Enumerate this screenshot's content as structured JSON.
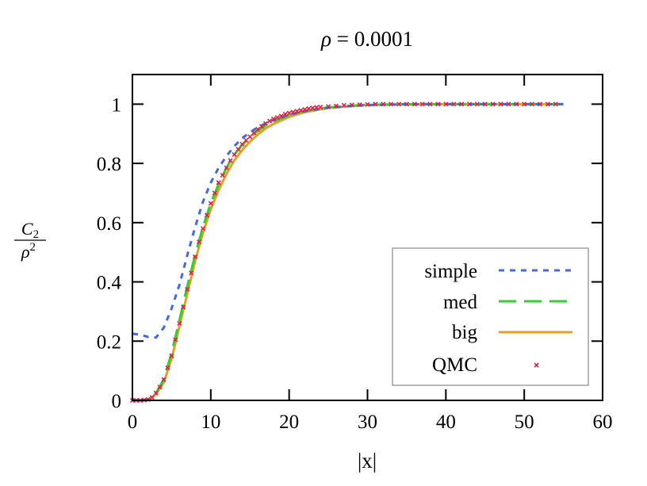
{
  "chart_data": {
    "type": "line",
    "title": "ρ = 0.0001",
    "title_parts": {
      "symbol": "ρ",
      "rest": " = 0.0001"
    },
    "xlabel": "|x|",
    "ylabel": {
      "numerator": "C",
      "numerator_sub": "2",
      "denominator": "ρ",
      "denominator_sup": "2"
    },
    "xlim": [
      0,
      60
    ],
    "ylim": [
      0,
      1.1
    ],
    "xticks": [
      0,
      10,
      20,
      30,
      40,
      50,
      60
    ],
    "yticks": [
      0,
      0.2,
      0.4,
      0.6,
      0.8,
      1
    ],
    "ytick_labels": [
      "0",
      "0.2",
      "0.4",
      "0.6",
      "0.8",
      "1"
    ],
    "grid": false,
    "legend_placement": "bottom-right",
    "series": [
      {
        "name": "simple",
        "style": "short-dash",
        "color": "#4169e1",
        "x": [
          0,
          1,
          2,
          3,
          4,
          5,
          6,
          7,
          8,
          9,
          10,
          11,
          12,
          13,
          14,
          15,
          16,
          18,
          20,
          22,
          25,
          30,
          35,
          40,
          55
        ],
        "y": [
          0.225,
          0.222,
          0.214,
          0.212,
          0.245,
          0.31,
          0.39,
          0.49,
          0.585,
          0.67,
          0.735,
          0.785,
          0.825,
          0.858,
          0.885,
          0.905,
          0.922,
          0.947,
          0.964,
          0.976,
          0.988,
          0.997,
          1,
          1,
          1
        ]
      },
      {
        "name": "med",
        "style": "long-dash",
        "color": "#33cc33",
        "x": [
          0,
          1,
          2,
          3,
          4,
          5,
          6,
          7,
          8,
          9,
          10,
          11,
          12,
          13,
          14,
          15,
          16,
          17,
          18,
          20,
          22,
          25,
          28,
          30,
          35,
          40,
          55
        ],
        "y": [
          0,
          0,
          0.004,
          0.025,
          0.07,
          0.16,
          0.27,
          0.385,
          0.49,
          0.585,
          0.665,
          0.73,
          0.785,
          0.83,
          0.862,
          0.888,
          0.91,
          0.928,
          0.942,
          0.963,
          0.977,
          0.989,
          0.995,
          0.998,
          1,
          1,
          1
        ]
      },
      {
        "name": "big",
        "style": "solid",
        "color": "#e6a020",
        "x": [
          0,
          1,
          2,
          3,
          4,
          5,
          6,
          7,
          8,
          9,
          10,
          11,
          12,
          13,
          14,
          15,
          16,
          17,
          18,
          20,
          22,
          25,
          28,
          30,
          35,
          40,
          55
        ],
        "y": [
          0,
          0,
          0.003,
          0.02,
          0.06,
          0.14,
          0.25,
          0.36,
          0.47,
          0.565,
          0.645,
          0.71,
          0.765,
          0.81,
          0.845,
          0.873,
          0.898,
          0.918,
          0.933,
          0.957,
          0.973,
          0.987,
          0.994,
          0.997,
          0.999,
          1,
          1
        ]
      },
      {
        "name": "QMC",
        "style": "cross-markers",
        "color": "#e0204a",
        "x": [
          0,
          0.5,
          1,
          1.5,
          2,
          2.5,
          3,
          3.5,
          4,
          4.5,
          5,
          5.5,
          6,
          6.5,
          7,
          7.5,
          8,
          8.5,
          9,
          9.5,
          10,
          10.5,
          11,
          11.5,
          12,
          12.5,
          13,
          13.5,
          14,
          14.5,
          15,
          15.5,
          16,
          16.5,
          17,
          17.5,
          18,
          18.5,
          19,
          19.5,
          20,
          20.5,
          21,
          21.5,
          22,
          22.5,
          23,
          23.5,
          24,
          25,
          26,
          27,
          28,
          29,
          30,
          31,
          32,
          33,
          34,
          35,
          36,
          37,
          38,
          39,
          40,
          41,
          42,
          43,
          44,
          45,
          46,
          47,
          48,
          49,
          50,
          51,
          52,
          53,
          54
        ],
        "y": [
          0,
          0,
          0,
          0.001,
          0.003,
          0.01,
          0.025,
          0.045,
          0.07,
          0.11,
          0.15,
          0.205,
          0.26,
          0.315,
          0.375,
          0.43,
          0.485,
          0.535,
          0.58,
          0.625,
          0.665,
          0.7,
          0.735,
          0.76,
          0.785,
          0.81,
          0.83,
          0.848,
          0.865,
          0.878,
          0.89,
          0.903,
          0.915,
          0.925,
          0.935,
          0.943,
          0.95,
          0.955,
          0.96,
          0.966,
          0.97,
          0.973,
          0.976,
          0.979,
          0.982,
          0.985,
          0.987,
          0.989,
          0.99,
          0.992,
          0.994,
          0.996,
          0.997,
          0.998,
          0.999,
          1,
          1,
          1,
          1,
          1,
          1,
          1,
          1,
          1,
          1,
          1,
          1,
          1,
          1,
          1,
          1,
          1,
          1,
          1,
          1,
          1,
          1,
          1,
          1
        ]
      }
    ]
  }
}
